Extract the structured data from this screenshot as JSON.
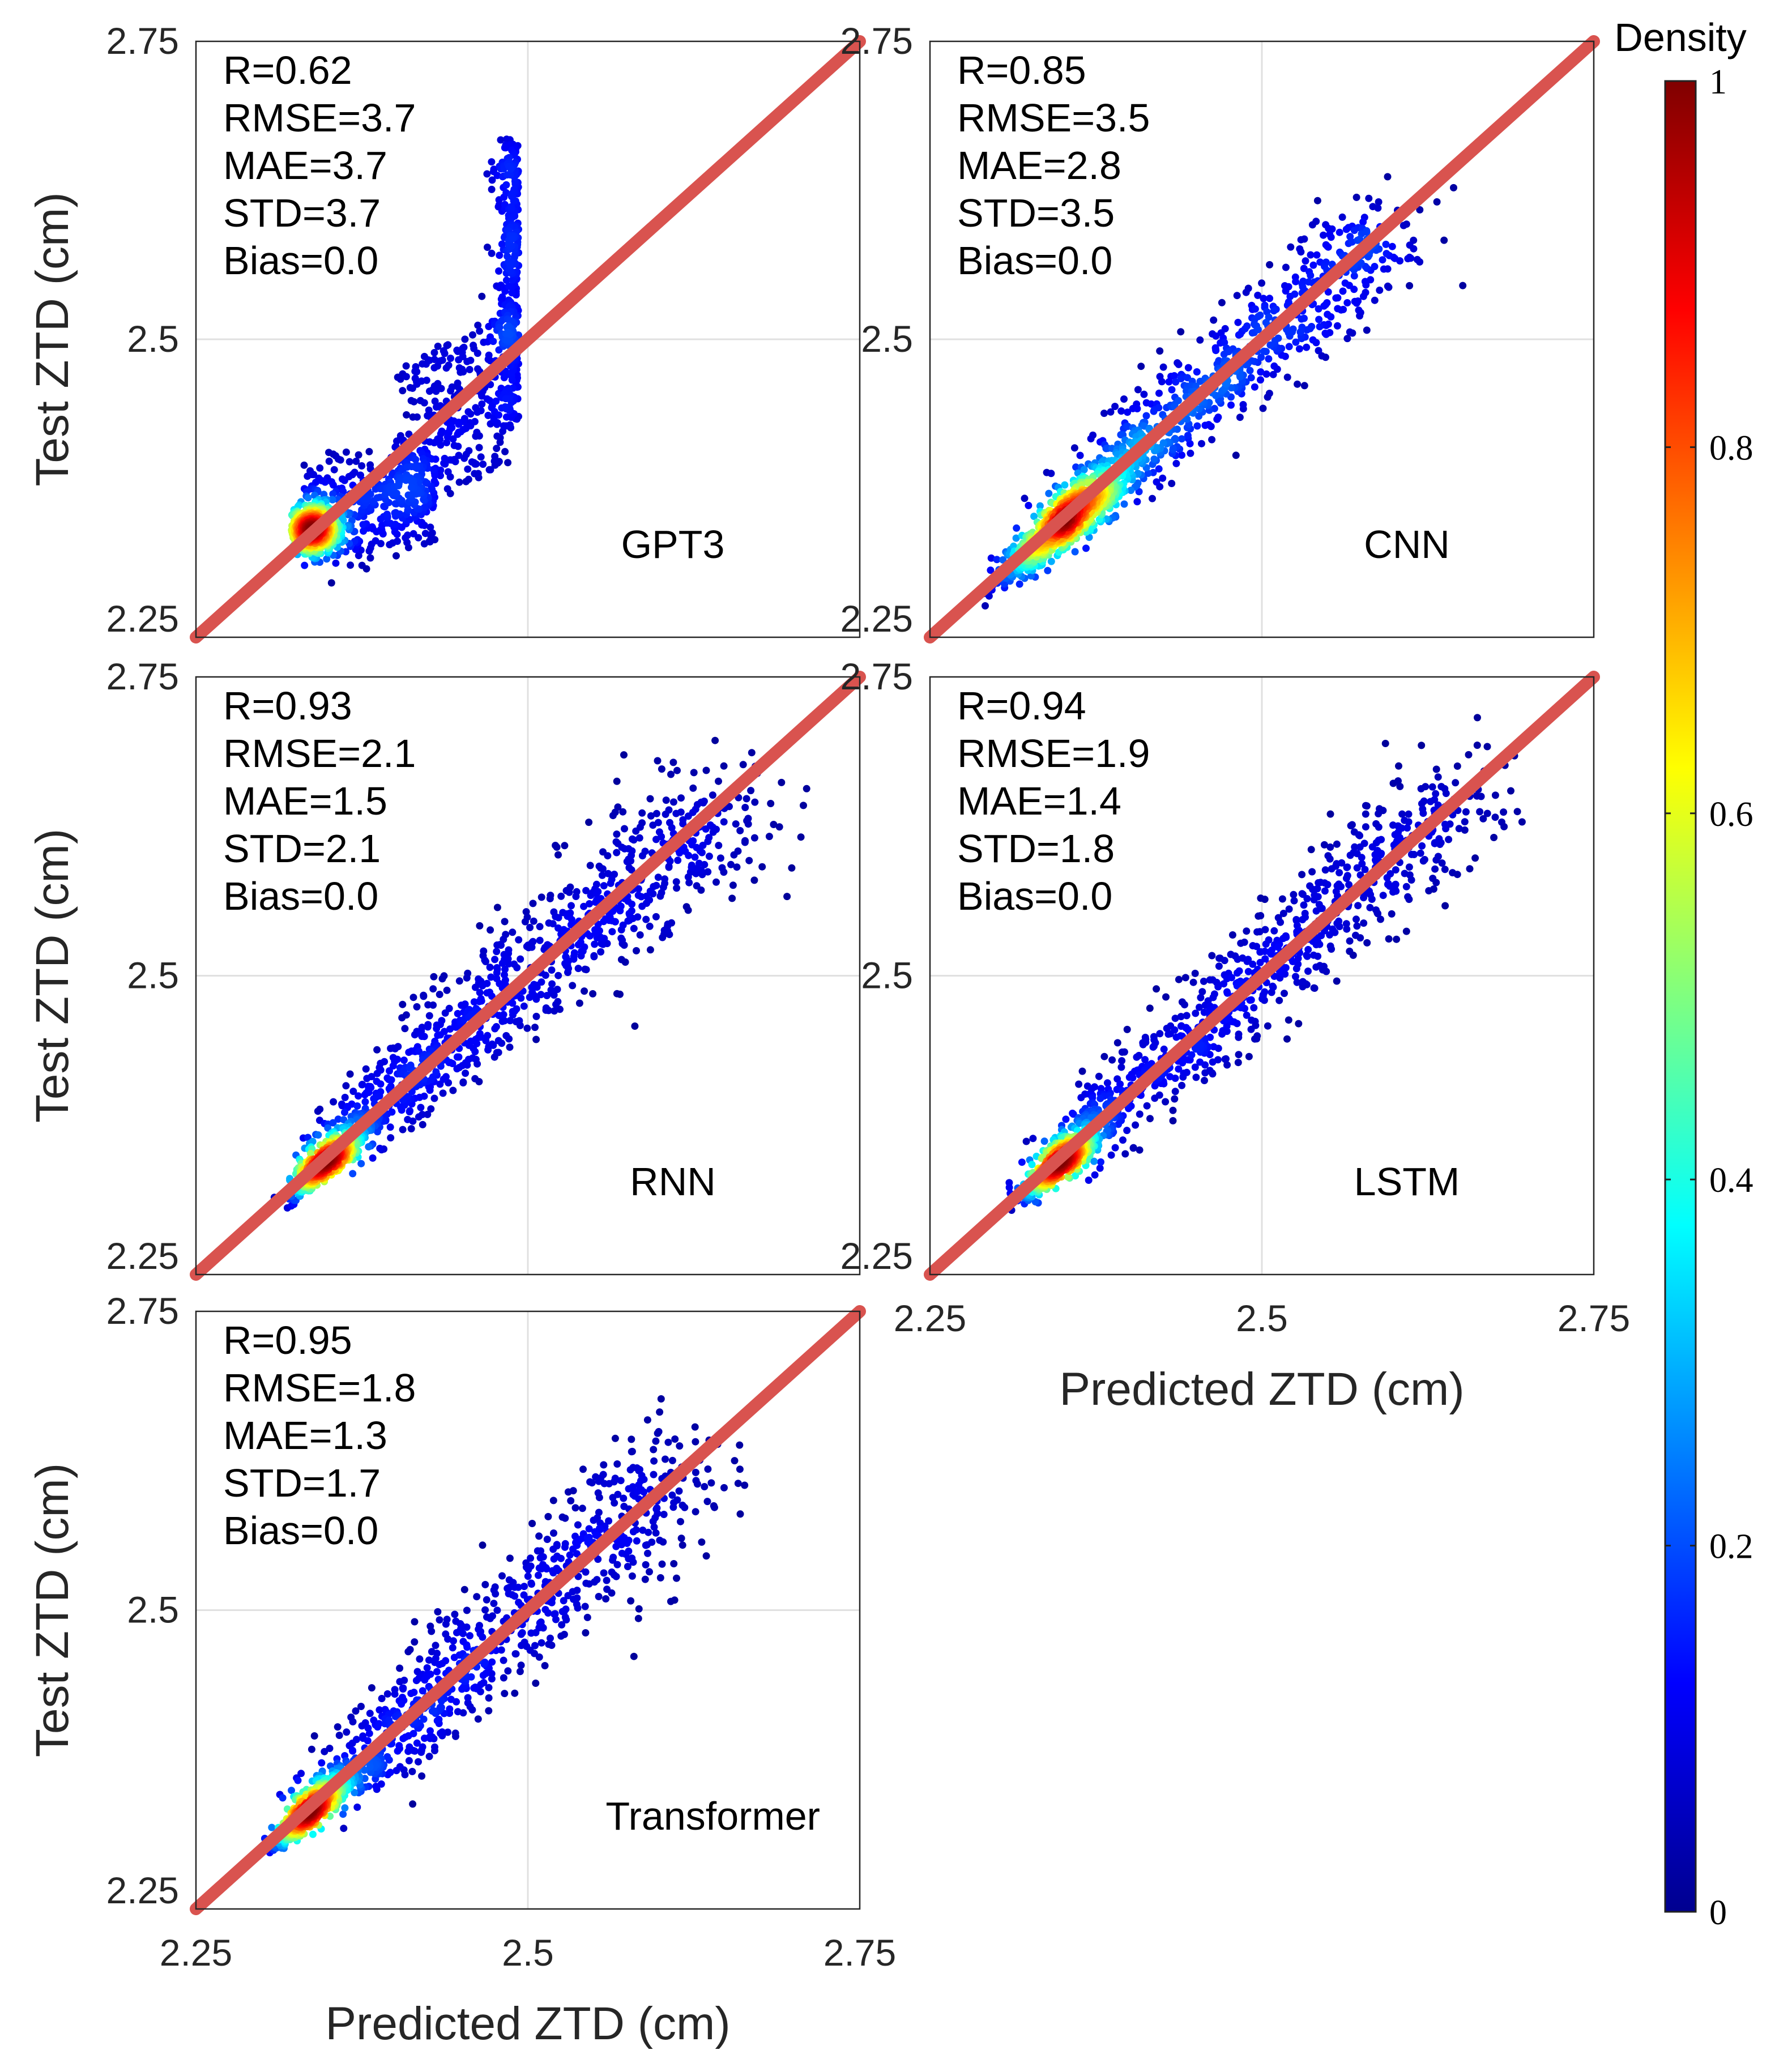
{
  "figure": {
    "y_axis_label": "Test ZTD (cm)",
    "x_axis_label": "Predicted ZTD (cm)"
  },
  "colorbar": {
    "title": "Density",
    "ticks": [
      "0",
      "0.2",
      "0.4",
      "0.6",
      "0.8",
      "1"
    ],
    "tick_values": [
      0,
      0.2,
      0.4,
      0.6,
      0.8,
      1
    ],
    "colormap": [
      "#00008f",
      "#0000ff",
      "#00ffff",
      "#ffff00",
      "#ff0000",
      "#800000"
    ]
  },
  "colors": {
    "reference_line": "#d9534f",
    "gridline": "#e0e0e0"
  },
  "chart_data": [
    {
      "type": "scatter",
      "name": "GPT3",
      "stats": [
        "R=0.62",
        "RMSE=3.7",
        "MAE=3.7",
        "STD=3.7",
        "Bias=0.0"
      ],
      "xlim": [
        2.25,
        2.75
      ],
      "ylim": [
        2.25,
        2.75
      ],
      "xticks": [
        "2.25",
        "2.5",
        "2.75"
      ],
      "yticks": [
        "2.25",
        "2.5",
        "2.75"
      ],
      "xtick_values": [
        2.25,
        2.5,
        2.75
      ],
      "ytick_values": [
        2.25,
        2.5,
        2.75
      ],
      "show_xticks": false,
      "show_xlabel": false,
      "show_ylabel": true,
      "reference_line": "y = x",
      "point_model": {
        "kind": "gpt3",
        "seed": 11,
        "count": 1700,
        "core": [
          2.338,
          2.34
        ],
        "y_max": 2.668,
        "x_max": 2.493
      }
    },
    {
      "type": "scatter",
      "name": "CNN",
      "stats": [
        "R=0.85",
        "RMSE=3.5",
        "MAE=2.8",
        "STD=3.5",
        "Bias=0.0"
      ],
      "xlim": [
        2.25,
        2.75
      ],
      "ylim": [
        2.25,
        2.75
      ],
      "xticks": [
        "2.25",
        "2.5",
        "2.75"
      ],
      "yticks": [
        "2.25",
        "2.5",
        "2.75"
      ],
      "xtick_values": [
        2.25,
        2.5,
        2.75
      ],
      "ytick_values": [
        2.25,
        2.5,
        2.75
      ],
      "show_xticks": false,
      "show_xlabel": false,
      "show_ylabel": false,
      "reference_line": "y = x",
      "point_model": {
        "kind": "diag",
        "seed": 23,
        "count": 1600,
        "core": [
          2.35,
          2.345
        ],
        "spread": 0.022,
        "tail_end": 2.6,
        "tail_scale": 0.045
      }
    },
    {
      "type": "scatter",
      "name": "RNN",
      "stats": [
        "R=0.93",
        "RMSE=2.1",
        "MAE=1.5",
        "STD=2.1",
        "Bias=0.0"
      ],
      "xlim": [
        2.25,
        2.75
      ],
      "ylim": [
        2.25,
        2.75
      ],
      "xticks": [
        "2.25",
        "2.5",
        "2.75"
      ],
      "yticks": [
        "2.25",
        "2.5",
        "2.75"
      ],
      "xtick_values": [
        2.25,
        2.5,
        2.75
      ],
      "ytick_values": [
        2.25,
        2.5,
        2.75
      ],
      "show_xticks": false,
      "show_xlabel": false,
      "show_ylabel": true,
      "reference_line": "y = x",
      "point_model": {
        "kind": "diag",
        "seed": 37,
        "count": 1700,
        "core": [
          2.347,
          2.343
        ],
        "spread": 0.012,
        "tail_end": 2.65,
        "tail_scale": 0.06
      }
    },
    {
      "type": "scatter",
      "name": "LSTM",
      "stats": [
        "R=0.94",
        "RMSE=1.9",
        "MAE=1.4",
        "STD=1.8",
        "Bias=0.0"
      ],
      "xlim": [
        2.25,
        2.75
      ],
      "ylim": [
        2.25,
        2.75
      ],
      "xticks": [
        "2.25",
        "2.5",
        "2.75"
      ],
      "yticks": [
        "2.25",
        "2.5",
        "2.75"
      ],
      "xtick_values": [
        2.25,
        2.5,
        2.75
      ],
      "ytick_values": [
        2.25,
        2.5,
        2.75
      ],
      "show_xticks": true,
      "show_xlabel": true,
      "show_ylabel": false,
      "reference_line": "y = x",
      "point_model": {
        "kind": "diag",
        "seed": 41,
        "count": 1700,
        "core": [
          2.348,
          2.343
        ],
        "spread": 0.012,
        "tail_end": 2.66,
        "tail_scale": 0.055
      }
    },
    {
      "type": "scatter",
      "name": "Transformer",
      "stats": [
        "R=0.95",
        "RMSE=1.8",
        "MAE=1.3",
        "STD=1.7",
        "Bias=0.0"
      ],
      "xlim": [
        2.25,
        2.75
      ],
      "ylim": [
        2.25,
        2.75
      ],
      "xticks": [
        "2.25",
        "2.5",
        "2.75"
      ],
      "yticks": [
        "2.25",
        "2.5",
        "2.75"
      ],
      "xtick_values": [
        2.25,
        2.5,
        2.75
      ],
      "ytick_values": [
        2.25,
        2.5,
        2.75
      ],
      "show_xticks": true,
      "show_xlabel": true,
      "show_ylabel": true,
      "reference_line": "y = x",
      "point_model": {
        "kind": "diag",
        "seed": 53,
        "count": 1600,
        "core": [
          2.335,
          2.33
        ],
        "spread": 0.012,
        "tail_end": 2.62,
        "tail_scale": 0.055
      }
    }
  ]
}
